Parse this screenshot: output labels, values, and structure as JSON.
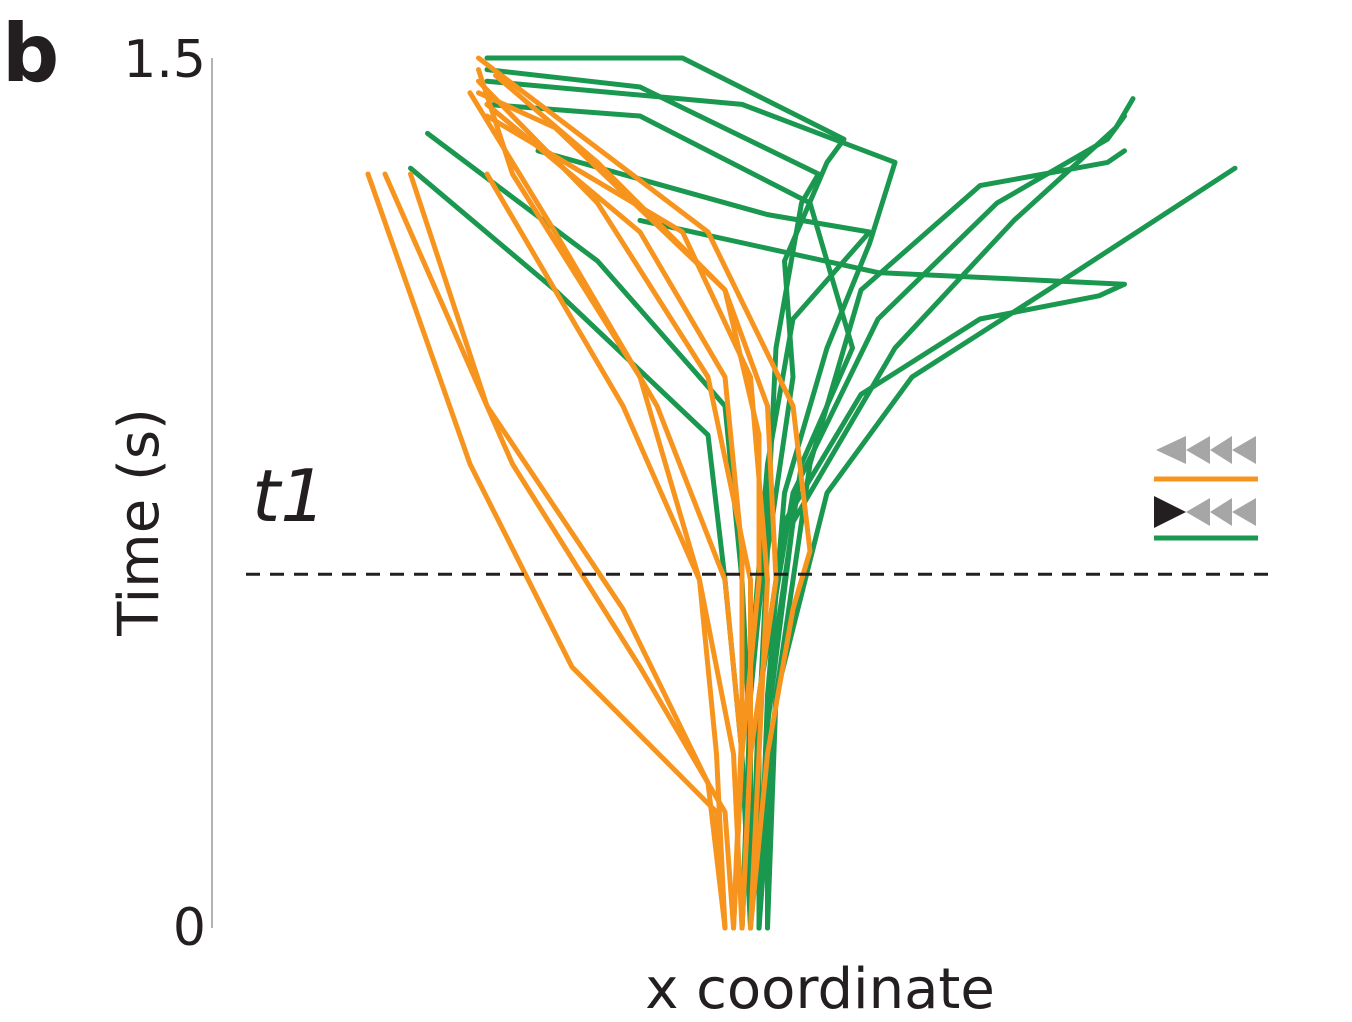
{
  "panel_label": "b",
  "colors": {
    "series_a": "#f7941d",
    "series_b": "#1a9850",
    "axis": "#9a9a9a",
    "dash": "#231f20",
    "legend_gray": "#a6a6a6",
    "legend_black": "#231f20"
  },
  "chart_data": {
    "type": "line",
    "title": "",
    "xlabel": "x coordinate",
    "ylabel": "Time (s)",
    "ylim": [
      0,
      1.5
    ],
    "y_ticks": [
      "1.5",
      "0"
    ],
    "x_ticks": [],
    "grid": false,
    "legend_position": "right",
    "annotations": [
      {
        "text": "t1",
        "y": 0.61
      }
    ],
    "legend": [
      {
        "symbol": "gray-gray-gray arrowheads",
        "color": "#f7941d"
      },
      {
        "symbol": "black-gray-gray arrowheads",
        "color": "#1a9850"
      }
    ],
    "x_units_note": "",
    "series": [
      {
        "color": "#f7941d",
        "traces": [
          [
            [
              0.5,
              0.0
            ],
            [
              0.49,
              0.2
            ],
            [
              0.32,
              0.45
            ],
            [
              0.2,
              0.8
            ],
            [
              0.08,
              1.3
            ]
          ],
          [
            [
              0.51,
              0.0
            ],
            [
              0.5,
              0.2
            ],
            [
              0.4,
              0.45
            ],
            [
              0.25,
              0.8
            ],
            [
              0.1,
              1.3
            ]
          ],
          [
            [
              0.5,
              0.0
            ],
            [
              0.48,
              0.25
            ],
            [
              0.38,
              0.55
            ],
            [
              0.22,
              0.9
            ],
            [
              0.13,
              1.3
            ]
          ],
          [
            [
              0.52,
              0.0
            ],
            [
              0.51,
              0.3
            ],
            [
              0.47,
              0.6
            ],
            [
              0.38,
              0.9
            ],
            [
              0.22,
              1.3
            ]
          ],
          [
            [
              0.51,
              0.0
            ],
            [
              0.52,
              0.3
            ],
            [
              0.5,
              0.6
            ],
            [
              0.42,
              0.9
            ],
            [
              0.3,
              1.2
            ],
            [
              0.2,
              1.44
            ]
          ],
          [
            [
              0.5,
              0.0
            ],
            [
              0.49,
              0.3
            ],
            [
              0.47,
              0.6
            ],
            [
              0.4,
              0.95
            ],
            [
              0.25,
              1.3
            ],
            [
              0.21,
              1.48
            ]
          ],
          [
            [
              0.52,
              0.0
            ],
            [
              0.53,
              0.3
            ],
            [
              0.53,
              0.6
            ],
            [
              0.48,
              0.95
            ],
            [
              0.35,
              1.25
            ],
            [
              0.21,
              1.46
            ]
          ],
          [
            [
              0.51,
              0.0
            ],
            [
              0.52,
              0.35
            ],
            [
              0.52,
              0.65
            ],
            [
              0.5,
              0.95
            ],
            [
              0.4,
              1.2
            ],
            [
              0.22,
              1.42
            ]
          ],
          [
            [
              0.53,
              0.0
            ],
            [
              0.54,
              0.3
            ],
            [
              0.55,
              0.6
            ],
            [
              0.53,
              0.95
            ],
            [
              0.45,
              1.2
            ],
            [
              0.22,
              1.4
            ]
          ],
          [
            [
              0.52,
              0.0
            ],
            [
              0.53,
              0.3
            ],
            [
              0.56,
              0.6
            ],
            [
              0.55,
              0.9
            ],
            [
              0.5,
              1.1
            ],
            [
              0.35,
              1.32
            ],
            [
              0.23,
              1.47
            ]
          ],
          [
            [
              0.53,
              0.0
            ],
            [
              0.55,
              0.3
            ],
            [
              0.58,
              0.55
            ],
            [
              0.6,
              0.65
            ],
            [
              0.58,
              0.9
            ],
            [
              0.48,
              1.2
            ],
            [
              0.21,
              1.5
            ]
          ],
          [
            [
              0.51,
              0.0
            ],
            [
              0.52,
              0.3
            ],
            [
              0.54,
              0.6
            ],
            [
              0.54,
              0.85
            ],
            [
              0.5,
              1.1
            ],
            [
              0.3,
              1.38
            ],
            [
              0.21,
              1.44
            ]
          ]
        ]
      },
      {
        "color": "#1a9850",
        "traces": [
          [
            [
              0.53,
              0.0
            ],
            [
              0.52,
              0.3
            ],
            [
              0.5,
              0.6
            ],
            [
              0.48,
              0.85
            ],
            [
              0.3,
              1.1
            ],
            [
              0.13,
              1.31
            ]
          ],
          [
            [
              0.52,
              0.0
            ],
            [
              0.53,
              0.3
            ],
            [
              0.52,
              0.6
            ],
            [
              0.5,
              0.9
            ],
            [
              0.35,
              1.15
            ],
            [
              0.15,
              1.37
            ]
          ],
          [
            [
              0.54,
              0.0
            ],
            [
              0.55,
              0.35
            ],
            [
              0.58,
              0.7
            ],
            [
              0.7,
              1.0
            ],
            [
              0.84,
              1.22
            ],
            [
              0.96,
              1.38
            ],
            [
              0.98,
              1.43
            ]
          ],
          [
            [
              0.53,
              0.0
            ],
            [
              0.54,
              0.4
            ],
            [
              0.58,
              0.75
            ],
            [
              0.68,
              1.05
            ],
            [
              0.82,
              1.25
            ],
            [
              0.95,
              1.36
            ],
            [
              0.97,
              1.4
            ]
          ],
          [
            [
              0.54,
              0.0
            ],
            [
              0.56,
              0.4
            ],
            [
              0.6,
              0.8
            ],
            [
              0.66,
              1.1
            ],
            [
              0.8,
              1.28
            ],
            [
              0.95,
              1.32
            ],
            [
              0.97,
              1.34
            ]
          ],
          [
            [
              0.55,
              0.0
            ],
            [
              0.56,
              0.4
            ],
            [
              0.62,
              0.75
            ],
            [
              0.72,
              0.95
            ],
            [
              0.88,
              1.1
            ],
            [
              1.1,
              1.31
            ]
          ],
          [
            [
              0.54,
              0.0
            ],
            [
              0.54,
              0.4
            ],
            [
              0.57,
              0.7
            ],
            [
              0.66,
              0.92
            ],
            [
              0.8,
              1.05
            ],
            [
              0.94,
              1.09
            ],
            [
              0.97,
              1.11
            ],
            [
              0.68,
              1.13
            ],
            [
              0.4,
              1.22
            ]
          ],
          [
            [
              0.53,
              0.0
            ],
            [
              0.54,
              0.35
            ],
            [
              0.55,
              0.65
            ],
            [
              0.58,
              0.95
            ],
            [
              0.57,
              1.15
            ],
            [
              0.62,
              1.32
            ],
            [
              0.64,
              1.36
            ],
            [
              0.45,
              1.5
            ],
            [
              0.22,
              1.5
            ]
          ],
          [
            [
              0.52,
              0.0
            ],
            [
              0.53,
              0.4
            ],
            [
              0.55,
              0.7
            ],
            [
              0.56,
              1.0
            ],
            [
              0.59,
              1.25
            ],
            [
              0.61,
              1.3
            ],
            [
              0.4,
              1.45
            ],
            [
              0.22,
              1.48
            ]
          ],
          [
            [
              0.53,
              0.0
            ],
            [
              0.53,
              0.45
            ],
            [
              0.55,
              0.8
            ],
            [
              0.58,
              1.05
            ],
            [
              0.67,
              1.2
            ],
            [
              0.55,
              1.23
            ],
            [
              0.28,
              1.34
            ]
          ],
          [
            [
              0.55,
              0.0
            ],
            [
              0.55,
              0.4
            ],
            [
              0.57,
              0.75
            ],
            [
              0.62,
              1.0
            ],
            [
              0.67,
              1.18
            ],
            [
              0.7,
              1.32
            ],
            [
              0.52,
              1.42
            ],
            [
              0.22,
              1.46
            ]
          ],
          [
            [
              0.54,
              0.0
            ],
            [
              0.55,
              0.4
            ],
            [
              0.59,
              0.8
            ],
            [
              0.65,
              1.0
            ],
            [
              0.6,
              1.25
            ],
            [
              0.4,
              1.4
            ],
            [
              0.22,
              1.42
            ]
          ]
        ]
      }
    ]
  }
}
